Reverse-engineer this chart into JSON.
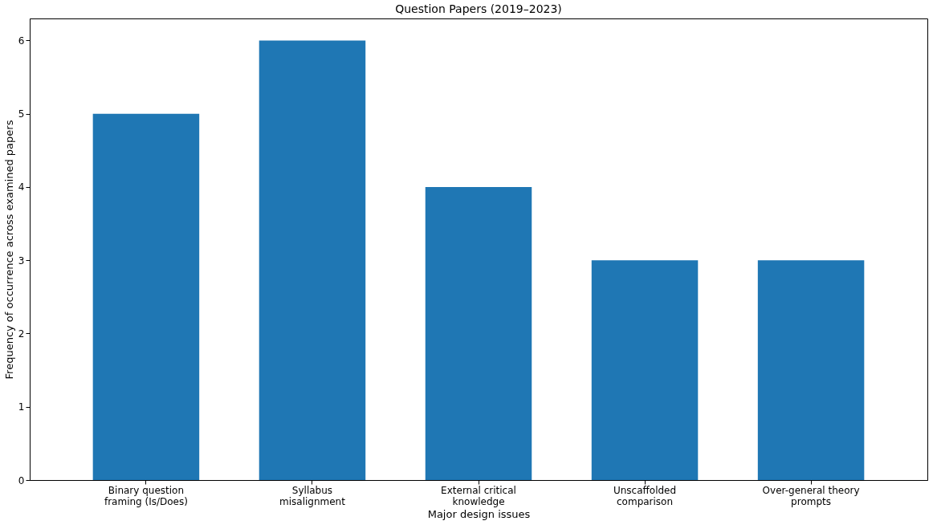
{
  "chart_data": {
    "type": "bar",
    "title": "Question Papers (2019–2023)",
    "categories": [
      "Binary question\nframing (Is/Does)",
      "Syllabus\nmisalignment",
      "External critical\nknowledge",
      "Unscaffolded\ncomparison",
      "Over-general theory\nprompts"
    ],
    "values": [
      5,
      6,
      4,
      3,
      3
    ],
    "color": "#1f77b4",
    "xlabel": "Major design issues",
    "ylabel": "Frequency of occurrence across examined papers",
    "ylim": [
      0,
      6.3
    ],
    "yticks": [
      0,
      1,
      2,
      3,
      4,
      5,
      6
    ],
    "grid": false
  }
}
